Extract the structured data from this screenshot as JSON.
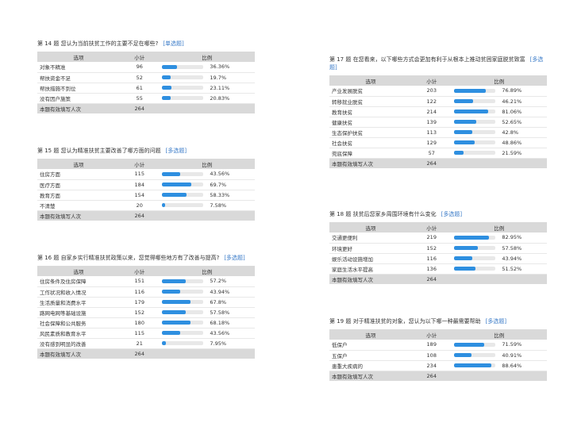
{
  "headers": {
    "option": "选项",
    "count": "小计",
    "ratio": "比例"
  },
  "questions": [
    {
      "title": "第 14 题   您认为当前扶贫工作的主要不足在哪些?",
      "tag": "[单选题]",
      "rows": [
        {
          "option": "对象不精准",
          "count": "96",
          "pct": "36.36%",
          "fill": 0.3636
        },
        {
          "option": "帮扶资金不足",
          "count": "52",
          "pct": "19.7%",
          "fill": 0.197
        },
        {
          "option": "帮扶措施不到位",
          "count": "61",
          "pct": "23.11%",
          "fill": 0.2311
        },
        {
          "option": "没有因户施策",
          "count": "55",
          "pct": "20.83%",
          "fill": 0.2083
        }
      ],
      "total_label": "本题有效填写人次",
      "total_count": "264"
    },
    {
      "title": "第 15 题   您认为精准扶贫主要改善了哪方面的问题",
      "tag": "[多选题]",
      "rows": [
        {
          "option": "住房方面",
          "count": "115",
          "pct": "43.56%",
          "fill": 0.4356
        },
        {
          "option": "医疗方面",
          "count": "184",
          "pct": "69.7%",
          "fill": 0.697
        },
        {
          "option": "教育方面",
          "count": "154",
          "pct": "58.33%",
          "fill": 0.5833
        },
        {
          "option": "不清楚",
          "count": "20",
          "pct": "7.58%",
          "fill": 0.0758
        }
      ],
      "total_label": "本题有效填写人次",
      "total_count": "264"
    },
    {
      "title": "第 16 题   自家乡实行精准扶贫政策以来，您觉得哪些地方有了改善与提高?",
      "tag": "[多选题]",
      "rows": [
        {
          "option": "住房条件及住房保障",
          "count": "151",
          "pct": "57.2%",
          "fill": 0.572
        },
        {
          "option": "工作状况和收入情况",
          "count": "116",
          "pct": "43.94%",
          "fill": 0.4394
        },
        {
          "option": "生活质量和消费水平",
          "count": "179",
          "pct": "67.8%",
          "fill": 0.678
        },
        {
          "option": "路网电网等基础设施",
          "count": "152",
          "pct": "57.58%",
          "fill": 0.5758
        },
        {
          "option": "社会保障和公共服务",
          "count": "180",
          "pct": "68.18%",
          "fill": 0.6818
        },
        {
          "option": "风民素质和教育水平",
          "count": "115",
          "pct": "43.56%",
          "fill": 0.4356
        },
        {
          "option": "没有感到明显的改善",
          "count": "21",
          "pct": "7.95%",
          "fill": 0.0795
        }
      ],
      "total_label": "本题有效填写人次",
      "total_count": "264"
    },
    {
      "title": "第 17 题   在您看来，以下哪些方式会更加有利于从根本上推动贫困家庭脱贫致富",
      "tag": "[多选题]",
      "rows": [
        {
          "option": "产业发展脱贫",
          "count": "203",
          "pct": "76.89%",
          "fill": 0.7689
        },
        {
          "option": "转移就业脱贫",
          "count": "122",
          "pct": "46.21%",
          "fill": 0.4621
        },
        {
          "option": "教育扶贫",
          "count": "214",
          "pct": "81.06%",
          "fill": 0.8106
        },
        {
          "option": "健康扶贫",
          "count": "139",
          "pct": "52.65%",
          "fill": 0.5265
        },
        {
          "option": "生态保护扶贫",
          "count": "113",
          "pct": "42.8%",
          "fill": 0.428
        },
        {
          "option": "社会扶贫",
          "count": "129",
          "pct": "48.86%",
          "fill": 0.4886
        },
        {
          "option": "兜底保障",
          "count": "57",
          "pct": "21.59%",
          "fill": 0.2159
        }
      ],
      "total_label": "本题有效填写人次",
      "total_count": "264"
    },
    {
      "title": "第 18 题   扶贫后您家乡周围环境有什么变化",
      "tag": "[多选题]",
      "rows": [
        {
          "option": "交通更便利",
          "count": "219",
          "pct": "82.95%",
          "fill": 0.8295
        },
        {
          "option": "环境更好",
          "count": "152",
          "pct": "57.58%",
          "fill": 0.5758
        },
        {
          "option": "娱乐活动设施增加",
          "count": "116",
          "pct": "43.94%",
          "fill": 0.4394
        },
        {
          "option": "家庭生活水平提高",
          "count": "136",
          "pct": "51.52%",
          "fill": 0.5152
        }
      ],
      "total_label": "本题有效填写人次",
      "total_count": "264"
    },
    {
      "title": "第 19 题   对于精准扶贫的对象，您认为以下哪一种最需要帮助",
      "tag": "[多选题]",
      "rows": [
        {
          "option": "低保户",
          "count": "189",
          "pct": "71.59%",
          "fill": 0.7159
        },
        {
          "option": "五保户",
          "count": "108",
          "pct": "40.91%",
          "fill": 0.4091
        },
        {
          "option": "患重大疾病的",
          "count": "234",
          "pct": "88.64%",
          "fill": 0.8864
        }
      ],
      "total_label": "本题有效填写人次",
      "total_count": "264"
    }
  ],
  "colors": {
    "bar_fill": "#2e8fe0",
    "bar_track": "#e8e8e8",
    "header_bg": "#d9d9d9",
    "tag_link": "#3a7bc8"
  }
}
